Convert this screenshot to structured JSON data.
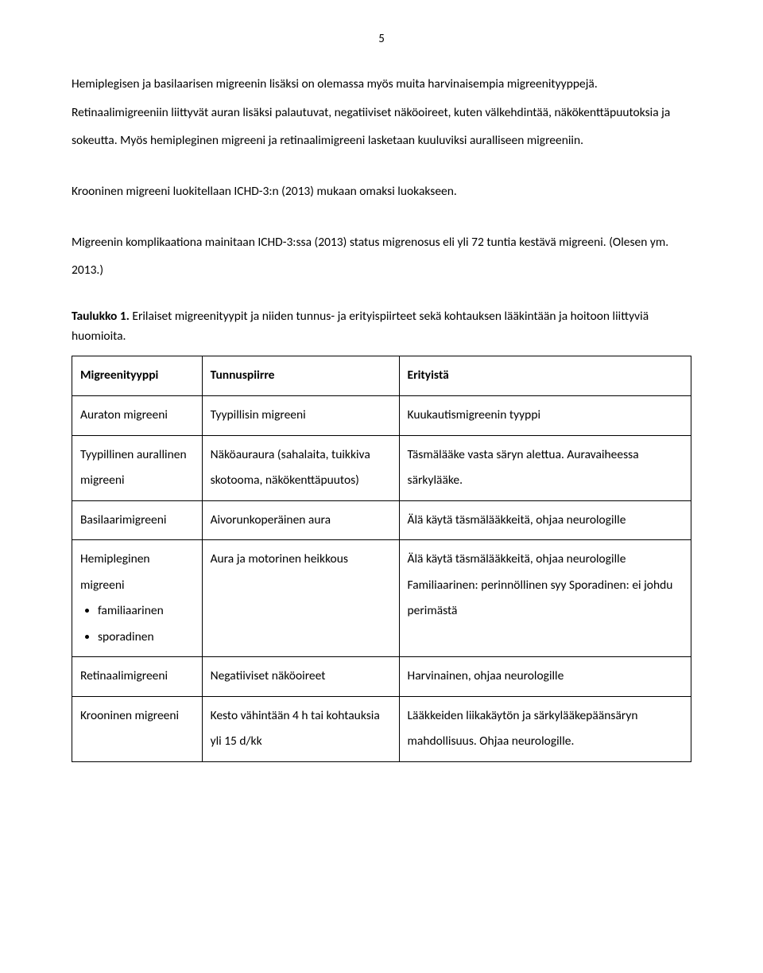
{
  "page_number": "5",
  "paragraphs": {
    "p1": "Hemiplegisen ja basilaarisen migreenin lisäksi on olemassa myös muita harvinaisempia migreenityyppejä. Retinaalimigreeniin liittyvät auran lisäksi palautuvat, negatiiviset näköoireet, kuten välkehdintää, näkökenttäpuutoksia ja sokeutta. Myös hemipleginen migreeni ja retinaalimigreeni lasketaan kuuluviksi auralliseen migreeniin.",
    "p2": "Krooninen migreeni luokitellaan ICHD-3:n (2013) mukaan omaksi luokakseen.",
    "p3": "Migreenin komplikaationa mainitaan ICHD-3:ssa (2013) status migrenosus eli yli 72 tuntia kestävä migreeni. (Olesen ym. 2013.)"
  },
  "table_caption_bold": "Taulukko 1.",
  "table_caption_rest": " Erilaiset migreenityypit ja niiden tunnus- ja erityispiirteet sekä kohtauksen lääkintään ja hoitoon liittyviä huomioita.",
  "table": {
    "headers": [
      "Migreenityyppi",
      "Tunnuspiirre",
      "Erityistä"
    ],
    "rows": [
      {
        "c1": "Auraton migreeni",
        "c2": "Tyypillisin migreeni",
        "c3": "Kuukautismigreenin tyyppi"
      },
      {
        "c1": "Tyypillinen aurallinen migreeni",
        "c2": "Näköauraura (sahalaita, tuikkiva skotooma, näkökenttäpuutos)",
        "c3": "Täsmälääke vasta säryn alettua. Auravaiheessa särkylääke."
      },
      {
        "c1": "Basilaarimigreeni",
        "c2": "Aivorunkoperäinen aura",
        "c3": "Älä käytä täsmälääkkeitä, ohjaa neurologille"
      },
      {
        "c1_label": "Hemipleginen migreeni",
        "c1_bullets": [
          "familiaarinen",
          "sporadinen"
        ],
        "c2": "Aura ja motorinen heikkous",
        "c3": "Älä käytä täsmälääkkeitä, ohjaa neurologille Familiaarinen: perinnöllinen syy Sporadinen: ei johdu perimästä"
      },
      {
        "c1": "Retinaalimigreeni",
        "c2": "Negatiiviset näköoireet",
        "c3": "Harvinainen, ohjaa neurologille"
      },
      {
        "c1": "Krooninen migreeni",
        "c2": "Kesto vähintään 4 h tai kohtauksia yli 15 d/kk",
        "c3": "Lääkkeiden liikakäytön ja särkylääkepäänsäryn mahdollisuus. Ohjaa neurologille."
      }
    ]
  }
}
